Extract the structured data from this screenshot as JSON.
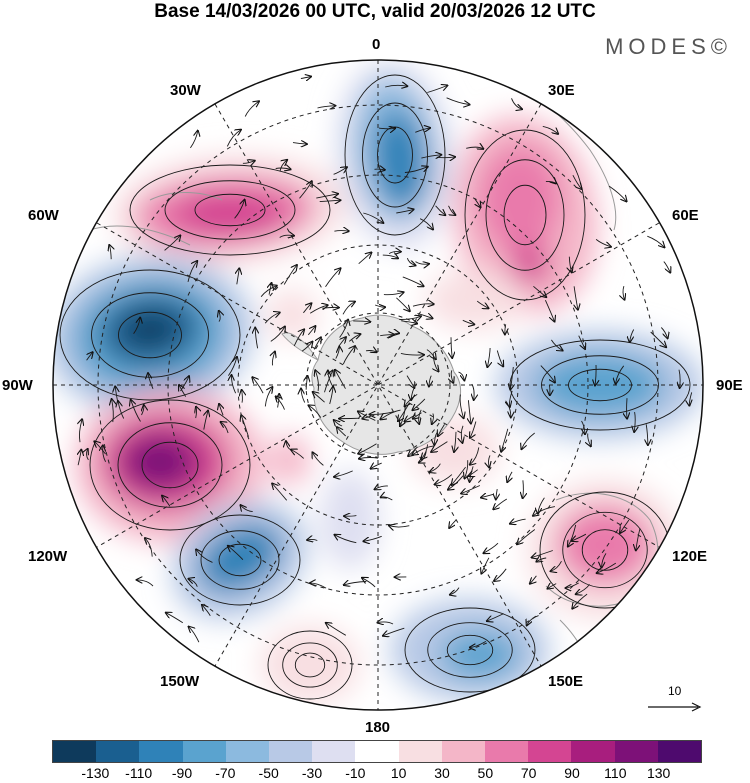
{
  "title": "Base 14/03/2026 00 UTC, valid 20/03/2026 12 UTC",
  "brand": "MODES©",
  "longitude_labels": {
    "n0": "0",
    "n30e": "30E",
    "n60e": "60E",
    "n90e": "90E",
    "n120e": "120E",
    "n150e": "150E",
    "n180": "180",
    "n150w": "150W",
    "n120w": "120W",
    "n90w": "90W",
    "n60w": "60W",
    "n30w": "30W"
  },
  "vector_reference": {
    "value": "10"
  },
  "colorbar": {
    "ticks": [
      "-130",
      "-110",
      "-90",
      "-70",
      "-50",
      "-30",
      "-10",
      "10",
      "30",
      "50",
      "70",
      "90",
      "110",
      "130"
    ],
    "colors": [
      "#0e3a5c",
      "#1a5f90",
      "#2f82b8",
      "#5aa3cf",
      "#8cbadf",
      "#b8c9e6",
      "#dedff1",
      "#ffffff",
      "#f8dfe2",
      "#f4b6c8",
      "#e97aab",
      "#d44592",
      "#a81e7e",
      "#7d1178",
      "#4e0a6e"
    ]
  },
  "map_colors": {
    "ocean": "#ffffff",
    "land": "#e6e6e6",
    "grid": "#222222",
    "stream": "#1a1a1a"
  }
}
